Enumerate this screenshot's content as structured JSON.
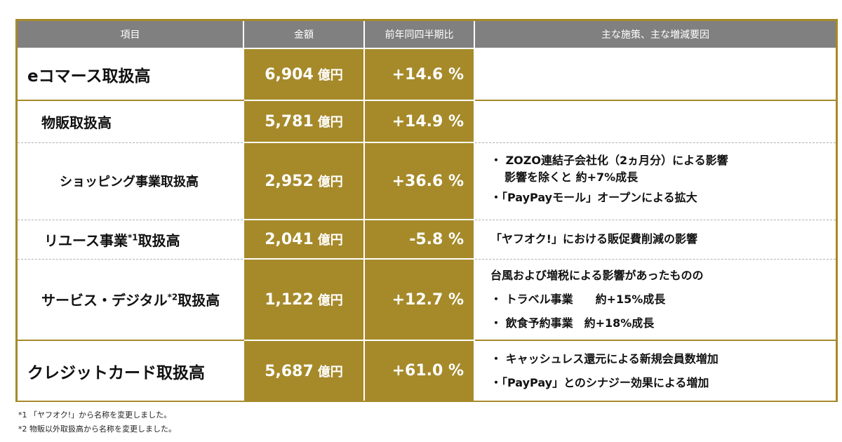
{
  "header": {
    "col_item": "項目",
    "col_amount": "金額",
    "col_yoy": "前年同四半期比",
    "col_notes": "主な施策、主な増減要因"
  },
  "rows": [
    {
      "label": "eコマース取扱高",
      "amount": "6,904",
      "unit": "億円",
      "yoy": "+14.6 %",
      "notes": []
    },
    {
      "label": "物販取扱高",
      "amount": "5,781",
      "unit": "億円",
      "yoy": "+14.9 %",
      "notes": []
    },
    {
      "label": "ショッピング事業取扱高",
      "amount": "2,952",
      "unit": "億円",
      "yoy": "+36.6 %",
      "notes": [
        "・ ZOZO連結子会社化（2ヵ月分）による影響",
        "影響を除くと 約+7%成長",
        "・「PayPayモール」オープンによる拡大"
      ]
    },
    {
      "label_pre": "リユース事業",
      "label_sup": "*1",
      "label_post": "取扱高",
      "amount": "2,041",
      "unit": "億円",
      "yoy": "-5.8 %",
      "notes": [
        "「ヤフオク!」における販促費削減の影響"
      ]
    },
    {
      "label_pre": "サービス・デジタル",
      "label_sup": "*2",
      "label_post": "取扱高",
      "amount": "1,122",
      "unit": "億円",
      "yoy": "+12.7 %",
      "notes": [
        "台風および増税による影響があったものの",
        "・ トラベル事業　　約+15%成長",
        "・ 飲食予約事業　約+18%成長"
      ]
    },
    {
      "label": "クレジットカード取扱高",
      "amount": "5,687",
      "unit": "億円",
      "yoy": "+61.0 %",
      "notes": [
        "・ キャッシュレス還元による新規会員数増加",
        "・「PayPay」とのシナジー効果による増加"
      ]
    }
  ],
  "footnotes": [
    "*1 「ヤフオク!」から名称を変更しました。",
    "*2 物販以外取扱高から名称を変更しました。"
  ],
  "colors": {
    "gold": "#a68a2a",
    "header_gray": "#808080"
  }
}
